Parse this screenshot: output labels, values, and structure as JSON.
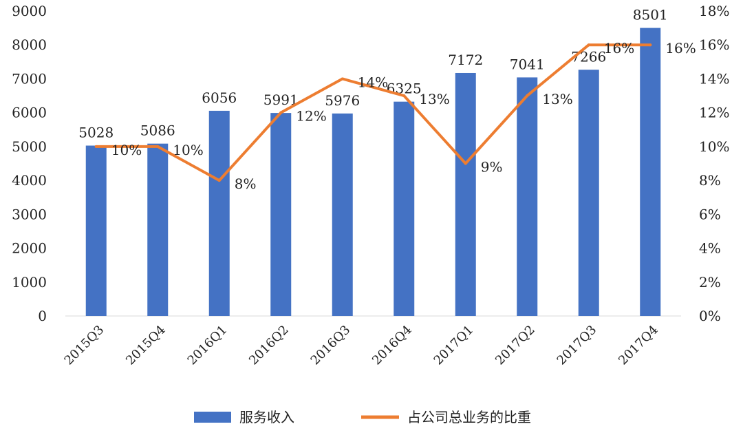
{
  "chart_data": {
    "type": "bar",
    "categories": [
      "2015Q3",
      "2015Q4",
      "2016Q1",
      "2016Q2",
      "2016Q3",
      "2016Q4",
      "2017Q1",
      "2017Q2",
      "2017Q3",
      "2017Q4"
    ],
    "series": [
      {
        "name": "服务收入",
        "type": "bar",
        "axis": "left",
        "values": [
          5028,
          5086,
          6056,
          5991,
          5976,
          6325,
          7172,
          7041,
          7266,
          8501
        ],
        "labels": [
          "5028",
          "5086",
          "6056",
          "5991",
          "5976",
          "6325",
          "7172",
          "7041",
          "7266",
          "8501"
        ],
        "color": "#4472C4"
      },
      {
        "name": "占公司总业务的比重",
        "type": "line",
        "axis": "right",
        "values": [
          10,
          10,
          8,
          12,
          14,
          13,
          9,
          13,
          16,
          16
        ],
        "labels": [
          "10%",
          "10%",
          "8%",
          "12%",
          "14%",
          "13%",
          "9%",
          "13%",
          "16%",
          "16%"
        ],
        "color": "#ED7D31"
      }
    ],
    "y_left": {
      "ylim": [
        0,
        9000
      ],
      "ticks": [
        "0",
        "1000",
        "2000",
        "3000",
        "4000",
        "5000",
        "6000",
        "7000",
        "8000",
        "9000"
      ]
    },
    "y_right": {
      "ylim": [
        0,
        18
      ],
      "ticks": [
        "0%",
        "2%",
        "4%",
        "6%",
        "8%",
        "10%",
        "12%",
        "14%",
        "16%",
        "18%"
      ]
    },
    "grid": false,
    "legend": "bottom"
  }
}
